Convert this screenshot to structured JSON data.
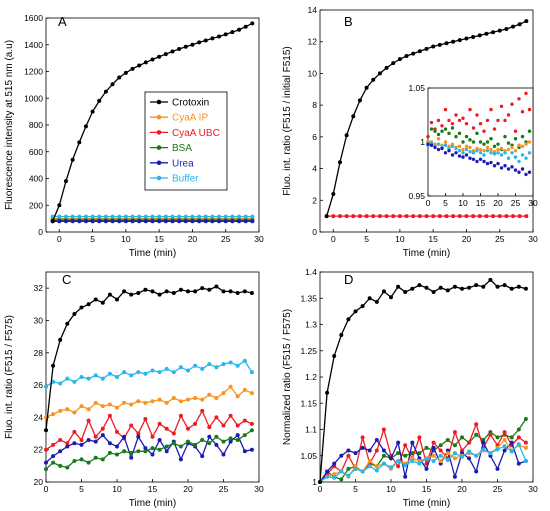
{
  "series_meta": [
    {
      "name": "Crotoxin",
      "color": "#000000"
    },
    {
      "name": "CyaA IP",
      "color": "#f7941d"
    },
    {
      "name": "CyaA UBC",
      "color": "#ed1c24"
    },
    {
      "name": "BSA",
      "color": "#1a7a1a"
    },
    {
      "name": "Urea",
      "color": "#1c1cb4"
    },
    {
      "name": "Buffer",
      "color": "#29b6e8"
    }
  ],
  "chart_data": [
    {
      "panel": "A",
      "type": "line",
      "xlabel": "Time (min)",
      "ylabel": "Fluorescence intensity at 515 nm (a.u)",
      "xlim": [
        -2,
        30
      ],
      "ylim": [
        0,
        1600
      ],
      "xticks": [
        0,
        5,
        10,
        15,
        20,
        25,
        30
      ],
      "yticks": [
        0,
        200,
        400,
        600,
        800,
        1000,
        1200,
        1400,
        1600
      ],
      "legend": "top-center",
      "series": [
        {
          "name": "Crotoxin",
          "x": [
            -1,
            0,
            1,
            2,
            3,
            4,
            5,
            6,
            7,
            8,
            9,
            10,
            11,
            12,
            13,
            14,
            15,
            16,
            17,
            18,
            19,
            20,
            21,
            22,
            23,
            24,
            25,
            26,
            27,
            28,
            29
          ],
          "y": [
            80,
            200,
            380,
            540,
            670,
            790,
            900,
            980,
            1050,
            1105,
            1155,
            1190,
            1220,
            1245,
            1268,
            1290,
            1310,
            1330,
            1350,
            1368,
            1385,
            1400,
            1418,
            1432,
            1448,
            1462,
            1478,
            1494,
            1512,
            1535,
            1560
          ]
        },
        {
          "name": "CyaA IP",
          "x": [
            -1,
            29
          ],
          "y": [
            100,
            100
          ]
        },
        {
          "name": "CyaA UBC",
          "x": [
            -1,
            29
          ],
          "y": [
            85,
            85
          ]
        },
        {
          "name": "BSA",
          "x": [
            -1,
            29
          ],
          "y": [
            90,
            90
          ]
        },
        {
          "name": "Urea",
          "x": [
            -1,
            29
          ],
          "y": [
            80,
            80
          ]
        },
        {
          "name": "Buffer",
          "x": [
            -1,
            29
          ],
          "y": [
            115,
            115
          ]
        }
      ]
    },
    {
      "panel": "B",
      "type": "line",
      "xlabel": "Time (min)",
      "ylabel": "Fluo. int. ratio (F515 / initial F515)",
      "xlim": [
        -2,
        30
      ],
      "ylim": [
        0,
        14
      ],
      "xticks": [
        0,
        5,
        10,
        15,
        20,
        25,
        30
      ],
      "yticks": [
        0,
        2,
        4,
        6,
        8,
        10,
        12,
        14
      ],
      "series": [
        {
          "name": "Crotoxin",
          "x": [
            -1,
            0,
            1,
            2,
            3,
            4,
            5,
            6,
            7,
            8,
            9,
            10,
            11,
            12,
            13,
            14,
            15,
            16,
            17,
            18,
            19,
            20,
            21,
            22,
            23,
            24,
            25,
            26,
            27,
            28,
            29
          ],
          "y": [
            1,
            2.4,
            4.4,
            6.1,
            7.3,
            8.3,
            9.1,
            9.6,
            10.0,
            10.35,
            10.65,
            10.9,
            11.1,
            11.25,
            11.4,
            11.55,
            11.7,
            11.8,
            11.9,
            12.0,
            12.1,
            12.2,
            12.3,
            12.4,
            12.5,
            12.6,
            12.7,
            12.8,
            12.95,
            13.1,
            13.3
          ]
        },
        {
          "name": "CyaA UBC",
          "x": [
            -1,
            29
          ],
          "y": [
            1,
            1
          ]
        }
      ],
      "inset": {
        "xlim": [
          0,
          30
        ],
        "ylim": [
          0.95,
          1.05
        ],
        "xticks": [
          0,
          5,
          10,
          15,
          20,
          25,
          30
        ],
        "yticks": [
          0.95,
          1,
          1.05
        ],
        "ytick_labels": [
          "0.95",
          "1",
          "1.05"
        ],
        "series": [
          {
            "name": "CyaA UBC",
            "y": [
              1.005,
              1.018,
              1.012,
              1.02,
              1.015,
              1.03,
              1.02,
              1.017,
              1.025,
              1.02,
              1.022,
              1.017,
              1.03,
              1.013,
              1.025,
              1.017,
              1.01,
              1.02,
              1.03,
              1.012,
              1.02,
              1.033,
              1.02,
              1.025,
              1.035,
              1.01,
              1.04,
              1.028,
              1.045,
              1.03
            ]
          },
          {
            "name": "BSA",
            "y": [
              1.0,
              1.012,
              1.01,
              1.007,
              1.01,
              1.012,
              1.008,
              1.013,
              1.005,
              1.008,
              1.0,
              1.005,
              1.002,
              1.0,
              1.008,
              1.0,
              0.998,
              1.0,
              1.003,
              0.996,
              0.998,
              0.993,
              1.005,
              0.999,
              0.997,
              1.003,
              0.995,
              1.005,
              1.0,
              1.01
            ]
          },
          {
            "name": "CyaA IP",
            "y": [
              1.0,
              1.0,
              0.998,
              1.003,
              0.997,
              1.0,
              0.996,
              0.998,
              0.995,
              0.996,
              0.993,
              0.996,
              0.995,
              0.992,
              0.994,
              0.993,
              0.992,
              0.995,
              0.993,
              0.991,
              0.993,
              0.994,
              0.992,
              0.993,
              0.995,
              0.992,
              0.997,
              0.996,
              0.998,
              1.0
            ]
          },
          {
            "name": "Buffer",
            "y": [
              0.997,
              0.999,
              0.996,
              0.998,
              0.995,
              0.997,
              0.994,
              0.996,
              0.994,
              0.992,
              0.99,
              0.993,
              0.991,
              0.99,
              0.992,
              0.99,
              0.988,
              0.992,
              0.99,
              0.989,
              0.99,
              0.988,
              0.99,
              0.985,
              0.99,
              0.986,
              0.982,
              0.988,
              0.985,
              0.99
            ]
          },
          {
            "name": "Urea",
            "y": [
              0.998,
              0.997,
              0.995,
              0.993,
              0.994,
              0.99,
              0.992,
              0.988,
              0.99,
              0.987,
              0.986,
              0.988,
              0.985,
              0.984,
              0.982,
              0.984,
              0.982,
              0.98,
              0.981,
              0.978,
              0.98,
              0.976,
              0.978,
              0.975,
              0.977,
              0.974,
              0.972,
              0.975,
              0.97,
              0.972
            ]
          }
        ]
      }
    },
    {
      "panel": "C",
      "type": "line",
      "xlabel": "Time (min)",
      "ylabel": "Fluo. int. ratio (F515 / F575)",
      "xlim": [
        0,
        30
      ],
      "ylim": [
        20,
        33
      ],
      "xticks": [
        0,
        5,
        10,
        15,
        20,
        25,
        30
      ],
      "yticks": [
        20,
        22,
        24,
        26,
        28,
        30,
        32
      ],
      "series": [
        {
          "name": "Crotoxin",
          "y": [
            23.2,
            27.2,
            28.8,
            29.8,
            30.4,
            30.8,
            31.0,
            31.3,
            31.1,
            31.6,
            31.3,
            31.8,
            31.6,
            31.7,
            31.9,
            31.8,
            31.6,
            31.8,
            31.7,
            31.9,
            31.8,
            31.8,
            32.0,
            31.9,
            32.1,
            31.8,
            31.8,
            31.7,
            31.8,
            31.7
          ]
        },
        {
          "name": "Buffer",
          "y": [
            25.9,
            26.2,
            26.1,
            26.4,
            26.2,
            26.5,
            26.4,
            26.6,
            26.4,
            26.7,
            26.5,
            26.8,
            26.6,
            26.8,
            26.7,
            26.9,
            26.8,
            27.0,
            26.8,
            27.1,
            26.9,
            27.2,
            27.0,
            27.3,
            27.1,
            27.3,
            27.4,
            27.2,
            27.5,
            26.8
          ]
        },
        {
          "name": "CyaA IP",
          "y": [
            24.0,
            24.2,
            24.4,
            24.5,
            24.3,
            24.7,
            24.5,
            24.9,
            24.7,
            24.8,
            24.6,
            24.9,
            24.8,
            25.0,
            24.9,
            25.0,
            25.1,
            24.9,
            25.2,
            25.0,
            25.1,
            25.2,
            25.1,
            25.4,
            25.2,
            25.5,
            25.9,
            25.3,
            25.7,
            25.5
          ]
        },
        {
          "name": "CyaA UBC",
          "y": [
            22.0,
            22.3,
            22.6,
            22.4,
            23.1,
            22.6,
            23.8,
            22.8,
            23.3,
            24.1,
            23.1,
            22.7,
            23.5,
            23.0,
            23.9,
            22.8,
            23.6,
            23.3,
            23.0,
            24.1,
            23.3,
            23.6,
            24.4,
            23.4,
            24.0,
            23.5,
            24.1,
            23.5,
            23.8,
            23.6
          ]
        },
        {
          "name": "Urea",
          "y": [
            21.2,
            21.6,
            21.9,
            22.2,
            22.4,
            22.3,
            22.6,
            22.5,
            22.9,
            22.4,
            22.2,
            22.8,
            21.5,
            22.8,
            22.1,
            21.7,
            22.6,
            21.9,
            22.5,
            21.4,
            22.4,
            22.2,
            21.6,
            22.8,
            22.3,
            21.7,
            22.5,
            22.9,
            21.9,
            22.0
          ]
        },
        {
          "name": "BSA",
          "y": [
            20.8,
            21.2,
            21.0,
            20.9,
            21.3,
            21.4,
            21.2,
            21.5,
            21.4,
            21.8,
            21.7,
            21.9,
            21.8,
            21.9,
            21.9,
            22.1,
            22.0,
            22.2,
            22.4,
            22.2,
            22.5,
            22.3,
            22.6,
            22.4,
            22.8,
            22.5,
            22.7,
            22.6,
            22.9,
            23.2
          ]
        }
      ]
    },
    {
      "panel": "D",
      "type": "line",
      "xlabel": "Time (min)",
      "ylabel": "Normalized ratio (F515 / F575)",
      "xlim": [
        0,
        30
      ],
      "ylim": [
        1,
        1.4
      ],
      "xticks": [
        0,
        5,
        10,
        15,
        20,
        25,
        30
      ],
      "yticks": [
        1,
        1.05,
        1.1,
        1.15,
        1.2,
        1.25,
        1.3,
        1.35,
        1.4
      ],
      "ytick_labels": [
        "1",
        "1.05",
        "1.1",
        "1.15",
        "1.2",
        "1.25",
        "1.3",
        "1.35",
        "1.4"
      ],
      "series": [
        {
          "name": "Crotoxin",
          "y": [
            1.0,
            1.17,
            1.24,
            1.28,
            1.31,
            1.325,
            1.335,
            1.35,
            1.343,
            1.363,
            1.352,
            1.372,
            1.362,
            1.368,
            1.375,
            1.37,
            1.362,
            1.37,
            1.365,
            1.372,
            1.368,
            1.37,
            1.375,
            1.372,
            1.385,
            1.372,
            1.375,
            1.368,
            1.372,
            1.368
          ]
        },
        {
          "name": "BSA",
          "y": [
            1.0,
            1.02,
            1.01,
            1.005,
            1.025,
            1.03,
            1.02,
            1.035,
            1.03,
            1.05,
            1.045,
            1.055,
            1.05,
            1.055,
            1.055,
            1.065,
            1.06,
            1.07,
            1.08,
            1.07,
            1.085,
            1.075,
            1.09,
            1.08,
            1.095,
            1.085,
            1.09,
            1.085,
            1.1,
            1.12
          ]
        },
        {
          "name": "CyaA UBC",
          "y": [
            1.0,
            1.015,
            1.03,
            1.02,
            1.05,
            1.025,
            1.085,
            1.035,
            1.06,
            1.1,
            1.05,
            1.03,
            1.07,
            1.045,
            1.085,
            1.035,
            1.075,
            1.06,
            1.045,
            1.095,
            1.06,
            1.075,
            1.11,
            1.065,
            1.09,
            1.07,
            1.095,
            1.07,
            1.085,
            1.075
          ]
        },
        {
          "name": "Urea",
          "y": [
            1.0,
            1.02,
            1.035,
            1.05,
            1.06,
            1.055,
            1.065,
            1.06,
            1.08,
            1.06,
            1.045,
            1.075,
            1.01,
            1.075,
            1.045,
            1.025,
            1.065,
            1.035,
            1.06,
            1.01,
            1.055,
            1.045,
            1.02,
            1.075,
            1.05,
            1.025,
            1.06,
            1.075,
            1.035,
            1.04
          ]
        },
        {
          "name": "CyaA IP",
          "y": [
            1.0,
            1.01,
            1.015,
            1.02,
            1.01,
            1.03,
            1.02,
            1.04,
            1.03,
            1.035,
            1.025,
            1.04,
            1.035,
            1.045,
            1.04,
            1.045,
            1.05,
            1.04,
            1.055,
            1.045,
            1.05,
            1.055,
            1.05,
            1.06,
            1.055,
            1.065,
            1.08,
            1.06,
            1.07,
            1.065
          ]
        },
        {
          "name": "Buffer",
          "y": [
            1.0,
            1.01,
            1.008,
            1.02,
            1.012,
            1.025,
            1.02,
            1.03,
            1.022,
            1.035,
            1.028,
            1.04,
            1.032,
            1.04,
            1.035,
            1.045,
            1.04,
            1.05,
            1.042,
            1.055,
            1.048,
            1.058,
            1.05,
            1.062,
            1.055,
            1.062,
            1.068,
            1.058,
            1.072,
            1.04
          ]
        }
      ]
    }
  ]
}
